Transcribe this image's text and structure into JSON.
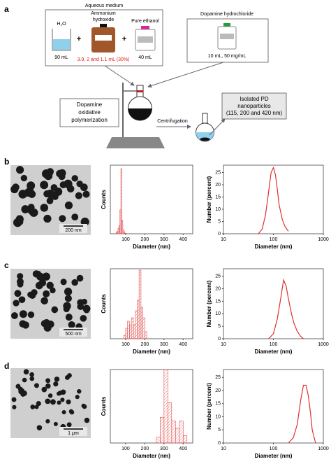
{
  "figure": {
    "panel_a": {
      "label": "a",
      "aqueous_medium": "Aqueous medium",
      "water": "H₂O",
      "water_volume": "90 mL",
      "plus": "+",
      "ammonium": [
        "Ammonium",
        "hydroxide"
      ],
      "ammonium_volume": "3.9, 2 and 1.1 mL (30%)",
      "ethanol": "Pure ethanol",
      "ethanol_volume": "40 mL",
      "dopamine": "Dopamine hydrochloride",
      "dopamine_volume": "10 mL, 50 mg/mL",
      "polymerization": [
        "Dopamine",
        "oxidative",
        "polymerization"
      ],
      "centrifugation": "Centrifugation",
      "product": [
        "Isolated PD",
        "nanoparticles",
        "(115, 200 and 420 nm)"
      ]
    },
    "rows": [
      {
        "label": "b",
        "scale_bar": "200 nm"
      },
      {
        "label": "c",
        "scale_bar": "500 nm"
      },
      {
        "label": "d",
        "scale_bar": "1 μm"
      }
    ]
  },
  "chart_data": [
    {
      "type": "histogram",
      "xlabel": "Diameter (nm)",
      "ylabel": "Counts",
      "color": "#e05050",
      "bins": [
        50,
        55,
        60,
        65,
        70,
        75,
        80,
        85,
        90,
        95,
        100
      ],
      "values": [
        2,
        4,
        8,
        12,
        35,
        95,
        20,
        6,
        3,
        1
      ],
      "xlim": [
        20,
        450
      ],
      "xticks": [
        100,
        200,
        300,
        400
      ],
      "ylim": [
        0,
        100
      ]
    },
    {
      "type": "line",
      "xlabel": "Diameter (nm)",
      "ylabel": "Number (percent)",
      "color": "#e03030",
      "xscale": "log",
      "x": [
        50,
        60,
        70,
        80,
        90,
        100,
        110,
        120,
        130,
        150,
        170,
        200
      ],
      "values": [
        0,
        2,
        8,
        17,
        25,
        27,
        24,
        18,
        12,
        6,
        3,
        1
      ],
      "xlim": [
        10,
        1000
      ],
      "xticks": [
        10,
        100,
        1000
      ],
      "ylim": [
        0,
        28
      ],
      "yticks": [
        0,
        5,
        10,
        15,
        20,
        25
      ]
    },
    {
      "type": "histogram",
      "xlabel": "Diameter (nm)",
      "ylabel": "Counts",
      "color": "#e05050",
      "bins": [
        90,
        100,
        110,
        120,
        130,
        140,
        150,
        160,
        170,
        180,
        190,
        200,
        210
      ],
      "values": [
        5,
        15,
        25,
        20,
        30,
        20,
        40,
        55,
        98,
        45,
        30,
        10
      ],
      "xlim": [
        20,
        450
      ],
      "xticks": [
        100,
        200,
        300,
        400
      ],
      "ylim": [
        0,
        100
      ]
    },
    {
      "type": "line",
      "xlabel": "Diameter (nm)",
      "ylabel": "Number (percent)",
      "color": "#e03030",
      "xscale": "log",
      "x": [
        80,
        100,
        120,
        140,
        160,
        180,
        200,
        230,
        260,
        300,
        350,
        400
      ],
      "values": [
        0,
        2,
        8,
        16,
        23.5,
        21,
        16,
        10,
        6,
        3,
        1,
        0
      ],
      "xlim": [
        10,
        1000
      ],
      "xticks": [
        10,
        100,
        1000
      ],
      "ylim": [
        0,
        28
      ],
      "yticks": [
        0,
        5,
        10,
        15,
        20,
        25
      ]
    },
    {
      "type": "histogram",
      "xlabel": "Diameter (nm)",
      "ylabel": "Counts",
      "color": "#e05050",
      "bins": [
        260,
        280,
        300,
        320,
        340,
        360,
        380,
        400,
        420
      ],
      "values": [
        8,
        35,
        100,
        55,
        30,
        20,
        30,
        10
      ],
      "xlim": [
        20,
        450
      ],
      "xticks": [
        100,
        200,
        300,
        400
      ],
      "ylim": [
        0,
        100
      ]
    },
    {
      "type": "line",
      "xlabel": "Diameter (nm)",
      "ylabel": "Number (percent)",
      "color": "#e03030",
      "xscale": "log",
      "x": [
        200,
        250,
        300,
        350,
        400,
        450,
        500,
        550,
        600,
        700
      ],
      "values": [
        0,
        2,
        7,
        16,
        22,
        22,
        18,
        12,
        5,
        0
      ],
      "xlim": [
        10,
        1000
      ],
      "xticks": [
        10,
        100,
        1000
      ],
      "ylim": [
        0,
        28
      ],
      "yticks": [
        0,
        5,
        10,
        15,
        20,
        25
      ]
    }
  ]
}
